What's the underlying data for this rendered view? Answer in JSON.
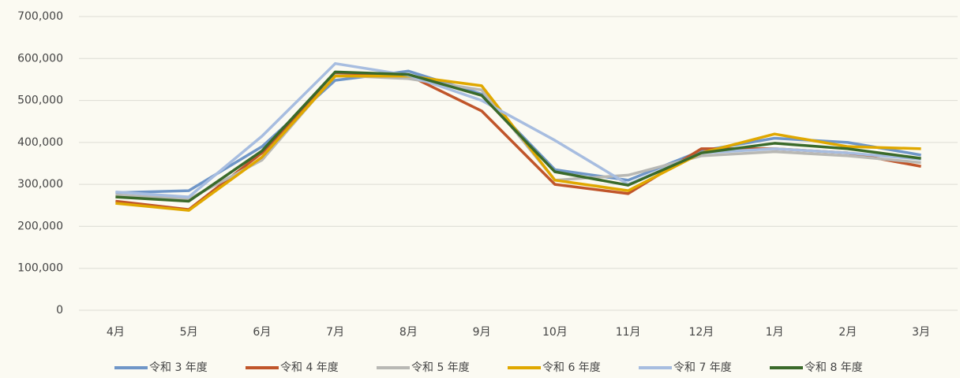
{
  "chart_data": {
    "type": "line",
    "categories": [
      "4月",
      "5月",
      "6月",
      "7月",
      "8月",
      "9月",
      "10月",
      "11月",
      "12月",
      "1月",
      "2月",
      "3月"
    ],
    "series": [
      {
        "name": "令和 3 年度",
        "color": "#6f96c8",
        "values": [
          280000,
          285000,
          390000,
          548000,
          570000,
          515000,
          335000,
          310000,
          380000,
          410000,
          400000,
          370000
        ]
      },
      {
        "name": "令和 4 年度",
        "color": "#c0552a",
        "values": [
          260000,
          240000,
          375000,
          565000,
          560000,
          475000,
          300000,
          278000,
          385000,
          385000,
          375000,
          343000
        ]
      },
      {
        "name": "令和 5 年度",
        "color": "#b8b8b4",
        "values": [
          275000,
          265000,
          358000,
          560000,
          552000,
          525000,
          310000,
          322000,
          368000,
          378000,
          368000,
          352000
        ]
      },
      {
        "name": "令和 6 年度",
        "color": "#e0a800",
        "values": [
          255000,
          238000,
          365000,
          558000,
          558000,
          535000,
          310000,
          285000,
          375000,
          420000,
          390000,
          385000
        ]
      },
      {
        "name": "令和 7 年度",
        "color": "#a7bde0",
        "values": [
          282000,
          270000,
          415000,
          588000,
          560000,
          500000,
          405000,
          300000,
          375000,
          385000,
          375000,
          360000
        ]
      },
      {
        "name": "令和 8 年度",
        "color": "#3a6a2a",
        "values": [
          270000,
          260000,
          380000,
          568000,
          562000,
          512000,
          330000,
          298000,
          375000,
          398000,
          385000,
          362000
        ]
      }
    ],
    "ylim": [
      0,
      700000
    ],
    "yticks": [
      0,
      {
        "value": 100000,
        "label": "100,000"
      },
      {
        "value": 200000,
        "label": "200,000"
      },
      {
        "value": 300000,
        "label": "300,000"
      },
      {
        "value": 400000,
        "label": "400,000"
      },
      {
        "value": 500000,
        "label": "500,000"
      },
      {
        "value": 600000,
        "label": "600,000"
      },
      {
        "value": 700000,
        "label": "700,000"
      }
    ],
    "grid": true,
    "legend": "bottom"
  }
}
